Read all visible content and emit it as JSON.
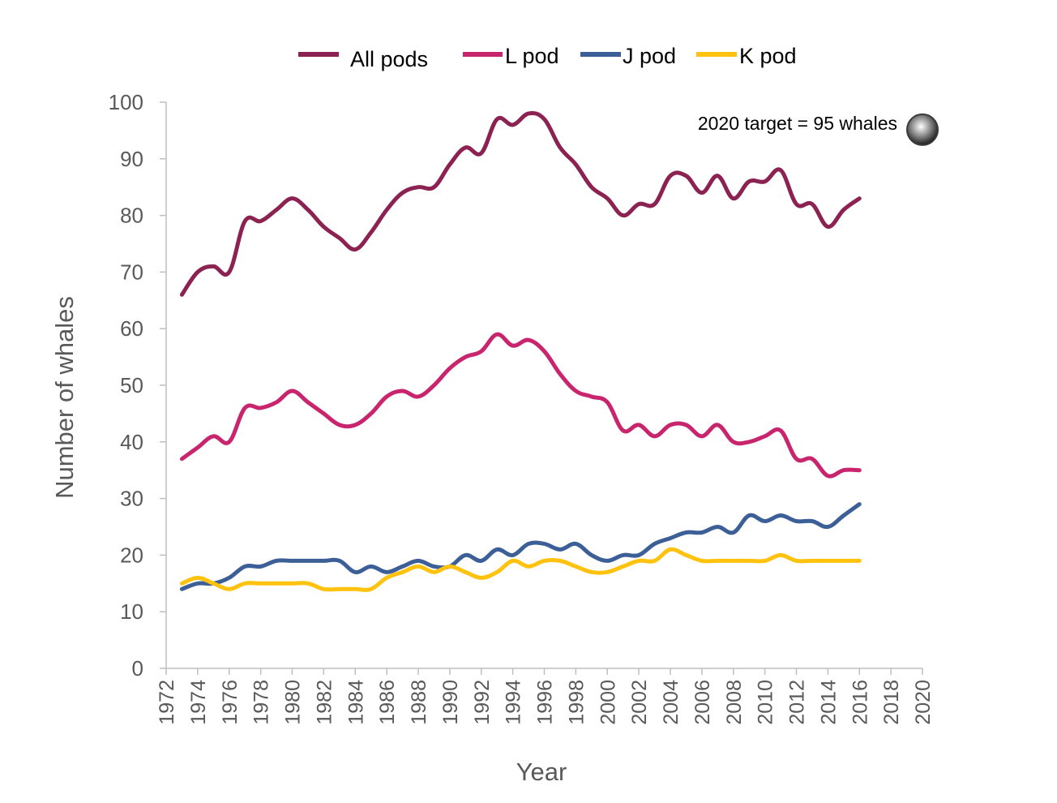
{
  "chart_data": {
    "type": "line",
    "xlabel": "Year",
    "ylabel": "Number of whales",
    "ylim": [
      0,
      100
    ],
    "xlim": [
      1972,
      2020
    ],
    "yticks": [
      0,
      10,
      20,
      30,
      40,
      50,
      60,
      70,
      80,
      90,
      100
    ],
    "xticks": [
      1972,
      1974,
      1976,
      1978,
      1980,
      1982,
      1984,
      1986,
      1988,
      1990,
      1992,
      1994,
      1996,
      1998,
      2000,
      2002,
      2004,
      2006,
      2008,
      2010,
      2012,
      2014,
      2016,
      2018,
      2020
    ],
    "grid": false,
    "legend_position": "top",
    "x": [
      1973,
      1974,
      1975,
      1976,
      1977,
      1978,
      1979,
      1980,
      1981,
      1982,
      1983,
      1984,
      1985,
      1986,
      1987,
      1988,
      1989,
      1990,
      1991,
      1992,
      1993,
      1994,
      1995,
      1996,
      1997,
      1998,
      1999,
      2000,
      2001,
      2002,
      2003,
      2004,
      2005,
      2006,
      2007,
      2008,
      2009,
      2010,
      2011,
      2012,
      2013,
      2014,
      2015,
      2016
    ],
    "series": [
      {
        "name": "All pods",
        "color": "#8B2252",
        "values": [
          66,
          70,
          71,
          70,
          79,
          79,
          81,
          83,
          81,
          78,
          76,
          74,
          77,
          81,
          84,
          85,
          85,
          89,
          92,
          91,
          97,
          96,
          98,
          97,
          92,
          89,
          85,
          83,
          80,
          82,
          82,
          87,
          87,
          84,
          87,
          83,
          86,
          86,
          88,
          82,
          82,
          78,
          81,
          83
        ]
      },
      {
        "name": "L pod",
        "color": "#C8256E",
        "values": [
          37,
          39,
          41,
          40,
          46,
          46,
          47,
          49,
          47,
          45,
          43,
          43,
          45,
          48,
          49,
          48,
          50,
          53,
          55,
          56,
          59,
          57,
          58,
          56,
          52,
          49,
          48,
          47,
          42,
          43,
          41,
          43,
          43,
          41,
          43,
          40,
          40,
          41,
          42,
          37,
          37,
          34,
          35,
          35
        ]
      },
      {
        "name": "J pod",
        "color": "#3B5F96",
        "values": [
          14,
          15,
          15,
          16,
          18,
          18,
          19,
          19,
          19,
          19,
          19,
          17,
          18,
          17,
          18,
          19,
          18,
          18,
          20,
          19,
          21,
          20,
          22,
          22,
          21,
          22,
          20,
          19,
          20,
          20,
          22,
          23,
          24,
          24,
          25,
          24,
          27,
          26,
          27,
          26,
          26,
          25,
          27,
          29
        ]
      },
      {
        "name": "K pod",
        "color": "#FFC20E",
        "values": [
          15,
          16,
          15,
          14,
          15,
          15,
          15,
          15,
          15,
          14,
          14,
          14,
          14,
          16,
          17,
          18,
          17,
          18,
          17,
          16,
          17,
          19,
          18,
          19,
          19,
          18,
          17,
          17,
          18,
          19,
          19,
          21,
          20,
          19,
          19,
          19,
          19,
          19,
          20,
          19,
          19,
          19,
          19,
          19
        ]
      }
    ],
    "annotation": {
      "text": "2020 target =  95 whales",
      "x": 2020,
      "y": 95
    }
  }
}
